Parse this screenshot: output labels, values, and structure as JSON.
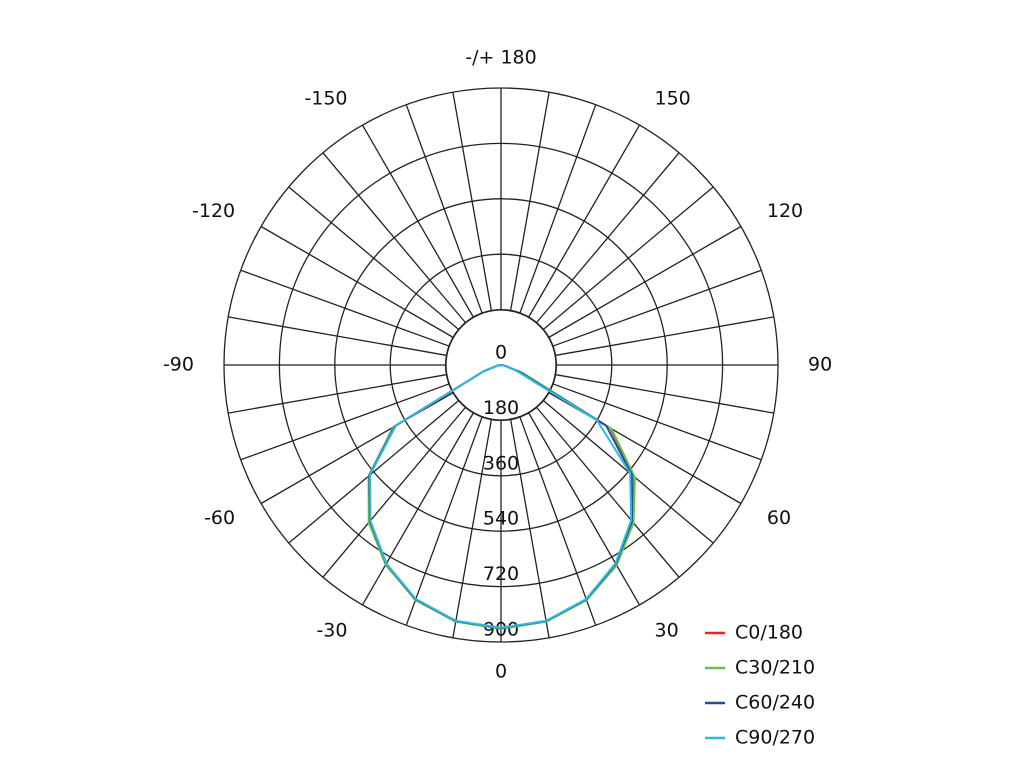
{
  "chart_data": {
    "type": "polar",
    "x": [
      -90,
      -80,
      -70,
      -60,
      -50,
      -40,
      -30,
      -20,
      -10,
      0,
      10,
      20,
      30,
      40,
      50,
      60,
      70,
      80,
      90
    ],
    "xlim": [
      -180,
      180
    ],
    "xticks": [
      0,
      30,
      60,
      90,
      120,
      150,
      {
        "value": 180,
        "label": "-/+ 180"
      },
      -150,
      -120,
      -90,
      -60,
      -30
    ],
    "ylim": [
      0,
      900
    ],
    "yticks": [
      0,
      180,
      360,
      540,
      720,
      900
    ],
    "series": [
      {
        "name": "C0/180",
        "color": "#e8232a",
        "values": [
          0,
          10,
          60,
          400,
          560,
          665,
          748,
          812,
          846,
          856,
          846,
          812,
          750,
          668,
          565,
          410,
          70,
          10,
          0
        ]
      },
      {
        "name": "C30/210",
        "color": "#6cc04a",
        "values": [
          0,
          10,
          60,
          405,
          562,
          668,
          750,
          813,
          847,
          857,
          847,
          813,
          752,
          670,
          568,
          415,
          75,
          10,
          0
        ]
      },
      {
        "name": "C60/240",
        "color": "#1f4e9c",
        "values": [
          0,
          10,
          60,
          398,
          558,
          662,
          746,
          810,
          845,
          855,
          845,
          810,
          746,
          662,
          555,
          395,
          60,
          10,
          0
        ]
      },
      {
        "name": "C90/270",
        "color": "#31b7e6",
        "values": [
          0,
          10,
          60,
          395,
          555,
          660,
          745,
          809,
          844,
          854,
          844,
          809,
          744,
          658,
          548,
          360,
          50,
          10,
          0
        ]
      }
    ],
    "legend": "lower-right"
  }
}
